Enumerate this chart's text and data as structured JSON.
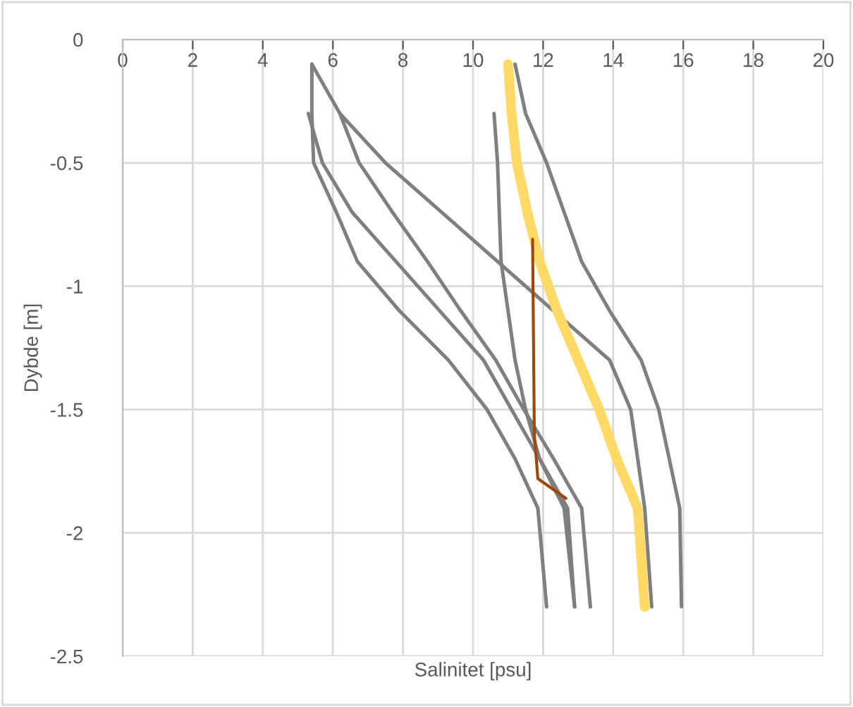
{
  "chart_data": {
    "type": "line",
    "xlabel": "Salinitet [psu]",
    "ylabel": "Dybde [m]",
    "xlim": [
      0,
      20
    ],
    "xticks": [
      0,
      2,
      4,
      6,
      8,
      10,
      12,
      14,
      16,
      18,
      20
    ],
    "ylim": [
      -2.5,
      0
    ],
    "yticks": [
      0,
      -0.5,
      -1,
      -1.5,
      -2,
      -2.5
    ],
    "grid": true,
    "marker": "none",
    "line_style": "solid",
    "series": [
      {
        "color": "#7f7f7f",
        "x": [
          5.4,
          6.2,
          7.5,
          9.1,
          10.7,
          12.3,
          13.9,
          14.5,
          14.7,
          14.9,
          15.1
        ],
        "values": [
          -0.1,
          -0.3,
          -0.5,
          -0.7,
          -0.9,
          -1.1,
          -1.3,
          -1.5,
          -1.7,
          -1.9,
          -2.3
        ]
      },
      {
        "color": "#7f7f7f",
        "x": [
          5.4,
          5.4,
          5.45,
          6.1,
          6.7,
          7.9,
          9.3,
          10.4,
          11.2,
          11.85,
          12.1
        ],
        "values": [
          -0.1,
          -0.3,
          -0.5,
          -0.7,
          -0.9,
          -1.1,
          -1.3,
          -1.5,
          -1.7,
          -1.9,
          -2.3
        ]
      },
      {
        "color": "#7f7f7f",
        "x": [
          5.3,
          5.7,
          6.55,
          7.8,
          9.05,
          10.3,
          11.1,
          11.9,
          12.7,
          12.9
        ],
        "values": [
          -0.3,
          -0.5,
          -0.7,
          -0.9,
          -1.1,
          -1.3,
          -1.5,
          -1.7,
          -1.9,
          -2.3
        ]
      },
      {
        "color": "#7f7f7f",
        "x": [
          6.2,
          6.75,
          7.7,
          8.7,
          9.65,
          10.65,
          11.45,
          12.3,
          13.1,
          13.35
        ],
        "values": [
          -0.3,
          -0.5,
          -0.7,
          -0.9,
          -1.1,
          -1.3,
          -1.5,
          -1.7,
          -1.9,
          -2.3
        ]
      },
      {
        "color": "#7f7f7f",
        "x": [
          10.6,
          10.7,
          10.75,
          10.8,
          11.0,
          11.2,
          11.5,
          11.9,
          12.6,
          12.9
        ],
        "values": [
          -0.3,
          -0.5,
          -0.7,
          -0.9,
          -1.1,
          -1.3,
          -1.5,
          -1.7,
          -1.9,
          -2.3
        ]
      },
      {
        "color": "#7f7f7f",
        "x": [
          11.2,
          11.5,
          12.1,
          12.6,
          13.1,
          13.9,
          14.8,
          15.3,
          15.6,
          15.9,
          15.95
        ],
        "values": [
          -0.1,
          -0.3,
          -0.5,
          -0.7,
          -0.9,
          -1.1,
          -1.3,
          -1.5,
          -1.7,
          -1.9,
          -2.3
        ]
      },
      {
        "color": "#ffd966",
        "x": [
          11.0,
          11.1,
          11.25,
          11.55,
          11.9,
          12.4,
          13.0,
          13.6,
          14.1,
          14.7,
          14.9
        ],
        "values": [
          -0.1,
          -0.3,
          -0.5,
          -0.7,
          -0.9,
          -1.1,
          -1.3,
          -1.5,
          -1.7,
          -1.9,
          -2.3
        ]
      },
      {
        "color": "#9e480e",
        "x": [
          11.7,
          11.75,
          11.85,
          12.65
        ],
        "values": [
          -0.81,
          -1.6,
          -1.78,
          -1.86
        ]
      }
    ]
  }
}
